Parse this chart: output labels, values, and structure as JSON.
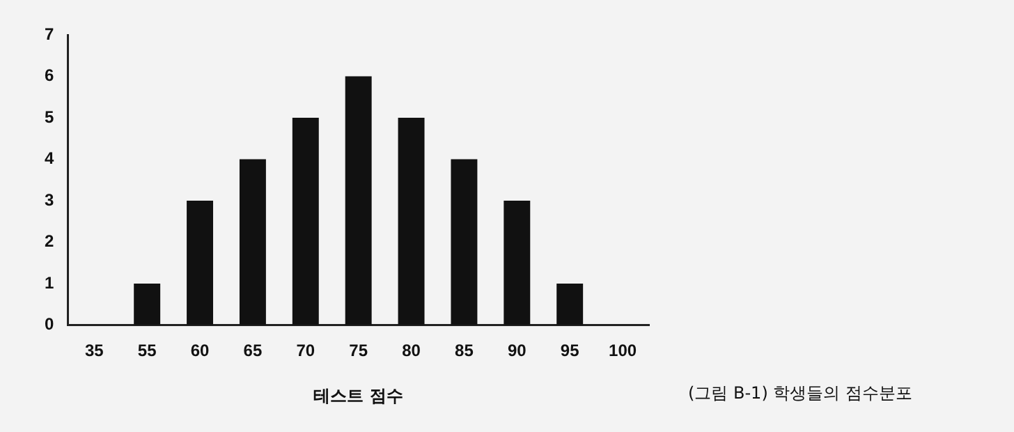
{
  "chart_data": {
    "type": "bar",
    "categories": [
      "35",
      "55",
      "60",
      "65",
      "70",
      "75",
      "80",
      "85",
      "90",
      "95",
      "100"
    ],
    "values": [
      0,
      1,
      3,
      4,
      5,
      6,
      5,
      4,
      3,
      1,
      0
    ],
    "color": "#111111",
    "ylim": [
      0,
      7
    ],
    "yticks": [
      0,
      1,
      2,
      3,
      4,
      5,
      6,
      7
    ],
    "grid": false,
    "legend": false,
    "xlabel": "테스트 점수",
    "annotations": [
      "(그림 B-1) 학생들의 점수분포"
    ]
  }
}
